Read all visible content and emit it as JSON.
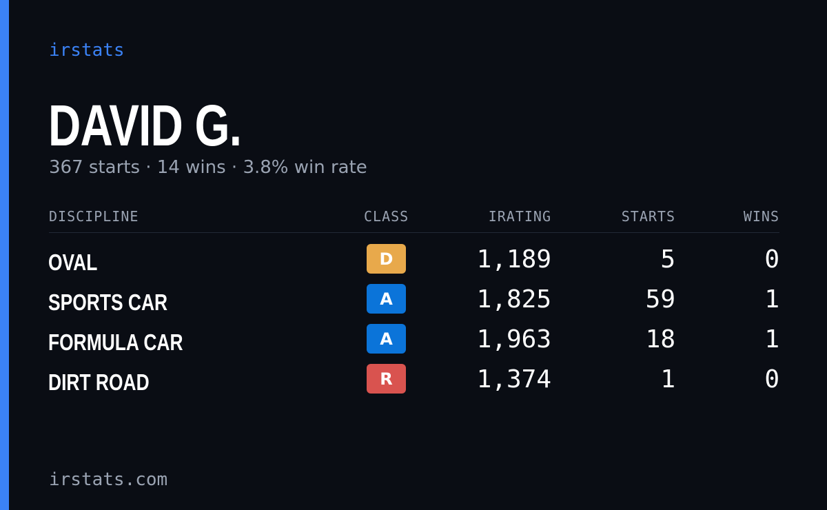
{
  "brand": "irstats",
  "driver": {
    "name": "DAVID G.",
    "summary": "367 starts · 14 wins · 3.8% win rate"
  },
  "table": {
    "headers": [
      "DISCIPLINE",
      "CLASS",
      "IRATING",
      "STARTS",
      "WINS"
    ],
    "rows": [
      {
        "discipline": "OVAL",
        "class": "D",
        "class_color": "#e8a94b",
        "irating": "1,189",
        "starts": "5",
        "wins": "0"
      },
      {
        "discipline": "SPORTS CAR",
        "class": "A",
        "class_color": "#0b74d9",
        "irating": "1,825",
        "starts": "59",
        "wins": "1"
      },
      {
        "discipline": "FORMULA CAR",
        "class": "A",
        "class_color": "#0b74d9",
        "irating": "1,963",
        "starts": "18",
        "wins": "1"
      },
      {
        "discipline": "DIRT ROAD",
        "class": "R",
        "class_color": "#d9534f",
        "irating": "1,374",
        "starts": "1",
        "wins": "0"
      }
    ]
  },
  "footer": "irstats.com",
  "colors": {
    "accent": "#3b82f6",
    "background": "#0a0d14"
  }
}
